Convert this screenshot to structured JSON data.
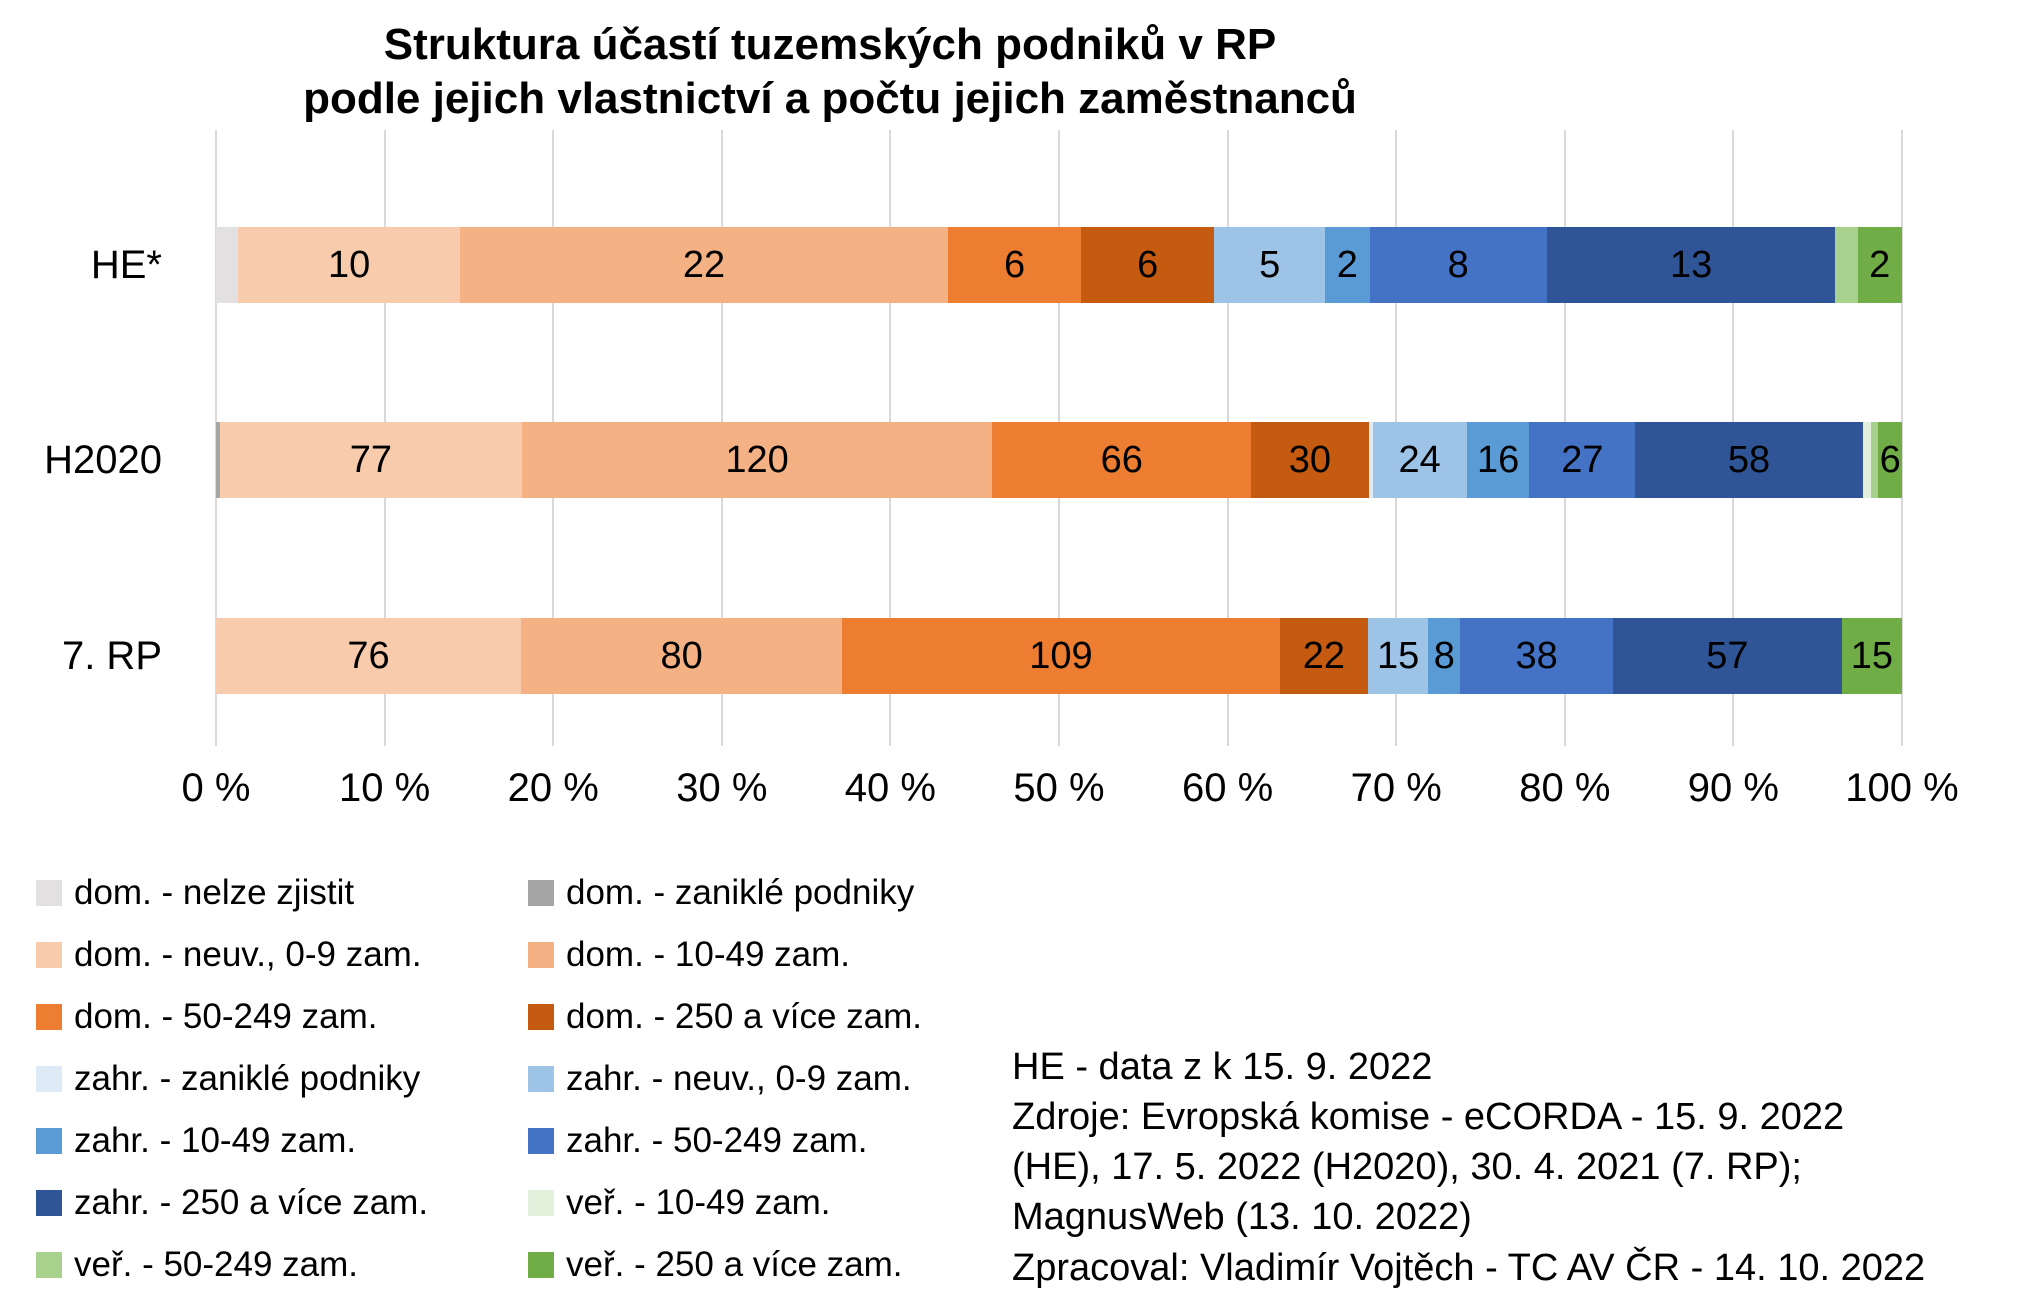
{
  "chart_data": {
    "type": "bar",
    "orientation": "horizontal",
    "stacked": true,
    "percent_axis": true,
    "title_lines": [
      "Struktura účastí tuzemských podniků v RP",
      "podle jejich vlastnictví a počtu jejich zaměstnanců"
    ],
    "categories": [
      "HE*",
      "H2020",
      "7. RP"
    ],
    "series": [
      {
        "name": "dom. - nelze zjistit",
        "color": "#e2e0e0",
        "values": [
          1,
          0,
          0
        ]
      },
      {
        "name": "dom. - zaniklé podniky",
        "color": "#a6a6a6",
        "values": [
          0,
          1,
          0
        ]
      },
      {
        "name": "dom. - neuv., 0-9 zam.",
        "color": "#f8cbad",
        "values": [
          10,
          77,
          76
        ]
      },
      {
        "name": "dom. - 10-49 zam.",
        "color": "#f4b183",
        "values": [
          22,
          120,
          80
        ]
      },
      {
        "name": "dom. - 50-249 zam.",
        "color": "#ed7d31",
        "values": [
          6,
          66,
          109
        ]
      },
      {
        "name": "dom. - 250 a více zam.",
        "color": "#c55a11",
        "values": [
          6,
          30,
          22
        ]
      },
      {
        "name": "zahr. - zaniklé podniky",
        "color": "#deebf7",
        "values": [
          0,
          1,
          0
        ]
      },
      {
        "name": "zahr. - neuv., 0-9 zam.",
        "color": "#9dc3e6",
        "values": [
          5,
          24,
          15
        ]
      },
      {
        "name": "zahr. - 10-49 zam.",
        "color": "#5b9bd5",
        "values": [
          2,
          16,
          8
        ]
      },
      {
        "name": "zahr. - 50-249 zam.",
        "color": "#4472c4",
        "values": [
          8,
          27,
          38
        ]
      },
      {
        "name": "zahr. - 250 a více zam.",
        "color": "#2f5597",
        "values": [
          13,
          58,
          57
        ]
      },
      {
        "name": "veř. - 10-49 zam.",
        "color": "#e2efda",
        "values": [
          0,
          2,
          0
        ]
      },
      {
        "name": "veř. - 50-249 zam.",
        "color": "#a9d18e",
        "values": [
          1,
          2,
          0
        ]
      },
      {
        "name": "veř. - 250 a více zam.",
        "color": "#70ad47",
        "values": [
          2,
          6,
          15
        ]
      }
    ],
    "x_ticks": [
      "0 %",
      "10 %",
      "20 %",
      "30 %",
      "40 %",
      "50 %",
      "60 %",
      "70 %",
      "80 %",
      "90 %",
      "100 %"
    ],
    "xlim": [
      0,
      100
    ],
    "grid": "vertical",
    "gridline_color": "#d9d9d9",
    "label_min_fraction": 0.0135,
    "legend_position": "bottom-left-two-columns"
  },
  "notes": {
    "lines": [
      "HE - data z k 15. 9. 2022",
      "Zdroje: Evropská komise - eCORDA - 15. 9. 2022",
      "(HE), 17. 5. 2022 (H2020), 30. 4. 2021 (7. RP);",
      "MagnusWeb (13. 10. 2022)",
      "Zpracoval: Vladimír Vojtěch - TC AV ČR - 14. 10. 2022"
    ]
  }
}
